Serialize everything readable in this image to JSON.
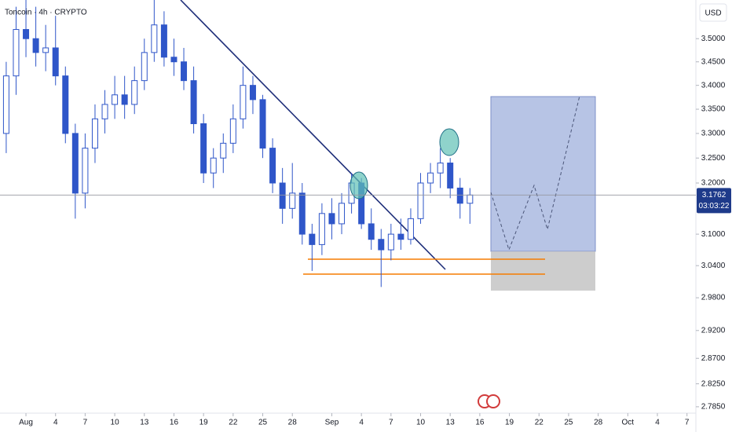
{
  "chart_data": {
    "type": "candlestick",
    "title": "Toncoin · 4h · CRYPTO",
    "currency": "USD",
    "color": "#2f56c9",
    "log_scale": true,
    "x": [
      -2,
      -1,
      0,
      1,
      2,
      3,
      4,
      5,
      6,
      7,
      8,
      9,
      10,
      11,
      12,
      13,
      14,
      15,
      16,
      17,
      18,
      19,
      20,
      21,
      22,
      23,
      24,
      25,
      26,
      27,
      28,
      29,
      30,
      31,
      32,
      33,
      34,
      35,
      36,
      37,
      38,
      39,
      40,
      41,
      42,
      43,
      44,
      45
    ],
    "open": [
      3.3,
      3.42,
      3.52,
      3.5,
      3.47,
      3.48,
      3.42,
      3.3,
      3.18,
      3.27,
      3.33,
      3.36,
      3.38,
      3.36,
      3.41,
      3.47,
      3.53,
      3.46,
      3.45,
      3.41,
      3.32,
      3.22,
      3.25,
      3.28,
      3.33,
      3.4,
      3.37,
      3.27,
      3.2,
      3.15,
      3.18,
      3.1,
      3.08,
      3.14,
      3.12,
      3.16,
      3.2,
      3.12,
      3.09,
      3.07,
      3.1,
      3.09,
      3.13,
      3.2,
      3.22,
      3.24,
      3.19,
      3.16
    ],
    "high": [
      3.45,
      3.57,
      3.585,
      3.57,
      3.53,
      3.55,
      3.44,
      3.32,
      3.3,
      3.36,
      3.39,
      3.42,
      3.42,
      3.44,
      3.5,
      3.585,
      3.56,
      3.5,
      3.48,
      3.44,
      3.34,
      3.27,
      3.3,
      3.36,
      3.44,
      3.42,
      3.38,
      3.29,
      3.23,
      3.24,
      3.2,
      3.12,
      3.16,
      3.17,
      3.18,
      3.22,
      3.21,
      3.15,
      3.11,
      3.12,
      3.13,
      3.15,
      3.22,
      3.24,
      3.27,
      3.25,
      3.21,
      3.19
    ],
    "low": [
      3.26,
      3.38,
      3.46,
      3.44,
      3.43,
      3.4,
      3.28,
      3.13,
      3.15,
      3.24,
      3.3,
      3.33,
      3.33,
      3.34,
      3.39,
      3.45,
      3.44,
      3.42,
      3.39,
      3.3,
      3.2,
      3.19,
      3.22,
      3.26,
      3.31,
      3.34,
      3.25,
      3.18,
      3.12,
      3.13,
      3.08,
      3.03,
      3.06,
      3.09,
      3.1,
      3.14,
      3.11,
      3.07,
      3.0,
      3.05,
      3.07,
      3.08,
      3.12,
      3.18,
      3.19,
      3.17,
      3.13,
      3.12
    ],
    "close": [
      3.42,
      3.52,
      3.5,
      3.47,
      3.48,
      3.42,
      3.3,
      3.18,
      3.27,
      3.33,
      3.36,
      3.38,
      3.36,
      3.41,
      3.47,
      3.53,
      3.46,
      3.45,
      3.41,
      3.32,
      3.22,
      3.25,
      3.28,
      3.33,
      3.4,
      3.37,
      3.27,
      3.2,
      3.15,
      3.18,
      3.1,
      3.08,
      3.14,
      3.12,
      3.16,
      3.2,
      3.12,
      3.09,
      3.07,
      3.1,
      3.09,
      3.13,
      3.2,
      3.22,
      3.24,
      3.19,
      3.16,
      3.1762
    ],
    "xlim": [
      -2.63,
      67.9
    ],
    "xticks": [
      {
        "value": 0,
        "label": "Aug"
      },
      {
        "value": 3,
        "label": "4"
      },
      {
        "value": 6,
        "label": "7"
      },
      {
        "value": 9,
        "label": "10"
      },
      {
        "value": 12,
        "label": "13"
      },
      {
        "value": 15,
        "label": "16"
      },
      {
        "value": 18,
        "label": "19"
      },
      {
        "value": 21,
        "label": "22"
      },
      {
        "value": 24,
        "label": "25"
      },
      {
        "value": 27,
        "label": "28"
      },
      {
        "value": 31,
        "label": "Sep"
      },
      {
        "value": 34,
        "label": "4"
      },
      {
        "value": 37,
        "label": "7"
      },
      {
        "value": 40,
        "label": "10"
      },
      {
        "value": 43,
        "label": "13"
      },
      {
        "value": 46,
        "label": "16"
      },
      {
        "value": 49,
        "label": "19"
      },
      {
        "value": 52,
        "label": "22"
      },
      {
        "value": 55,
        "label": "25"
      },
      {
        "value": 58,
        "label": "28"
      },
      {
        "value": 61,
        "label": "Oct"
      },
      {
        "value": 64,
        "label": "4"
      },
      {
        "value": 67,
        "label": "7"
      }
    ],
    "ylim": [
      2.774,
      3.585
    ],
    "yticks": [
      {
        "value": 3.5,
        "label": "3.5000"
      },
      {
        "value": 3.45,
        "label": "3.4500"
      },
      {
        "value": 3.4,
        "label": "3.4000"
      },
      {
        "value": 3.35,
        "label": "3.3500"
      },
      {
        "value": 3.3,
        "label": "3.3000"
      },
      {
        "value": 3.25,
        "label": "3.2500"
      },
      {
        "value": 3.2,
        "label": "3.2000"
      },
      {
        "value": 3.1,
        "label": "3.1000"
      },
      {
        "value": 3.04,
        "label": "3.0400"
      },
      {
        "value": 2.98,
        "label": "2.9800"
      },
      {
        "value": 2.92,
        "label": "2.9200"
      },
      {
        "value": 2.87,
        "label": "2.8700"
      },
      {
        "value": 2.825,
        "label": "2.8250"
      },
      {
        "value": 2.785,
        "label": "2.7850"
      }
    ],
    "last_price": 3.1762,
    "countdown": "03:03:22"
  }
}
